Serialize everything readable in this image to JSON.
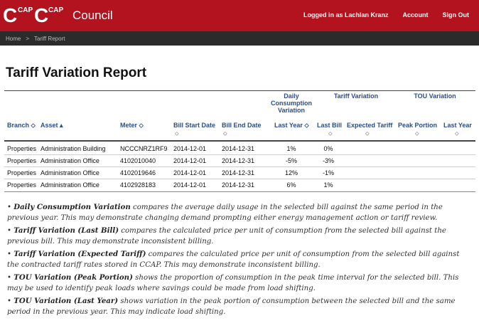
{
  "header": {
    "logo_letter_1": "C",
    "logo_sup_1": "CAP",
    "logo_letter_2": "C",
    "logo_sup_2": "CAP",
    "app_title": "Council",
    "logged_in": "Logged in as Lachlan Kranz",
    "account": "Account",
    "sign_out": "Sign Out"
  },
  "breadcrumb": {
    "home": "Home",
    "separator": ">",
    "current": "Tariff Report"
  },
  "page_title": "Tariff Variation Report",
  "table": {
    "groups": {
      "daily": "Daily Consumption Variation",
      "tariff": "Tariff Variation",
      "tou": "TOU Variation"
    },
    "columns": {
      "branch": "Branch",
      "asset": "Asset",
      "meter": "Meter",
      "bill_start": "Bill Start Date",
      "bill_end": "Bill End Date",
      "last_year": "Last Year",
      "last_bill": "Last Bill",
      "expected_tariff": "Expected Tariff",
      "peak_portion": "Peak Portion",
      "tou_last_year": "Last Year"
    },
    "sort_icons": {
      "both": "⬦",
      "up": "▴"
    },
    "rows": [
      {
        "branch": "Properties",
        "asset": "Administration Building",
        "meter": "NCCCNRZ1RF9",
        "start": "2014-12-01",
        "end": "2014-12-31",
        "last_year": "1%",
        "last_bill": "0%"
      },
      {
        "branch": "Properties",
        "asset": "Administration Office",
        "meter": "4102010040",
        "start": "2014-12-01",
        "end": "2014-12-31",
        "last_year": "-5%",
        "last_bill": "-3%"
      },
      {
        "branch": "Properties",
        "asset": "Administration Office",
        "meter": "4102019646",
        "start": "2014-12-01",
        "end": "2014-12-31",
        "last_year": "12%",
        "last_bill": "-1%"
      },
      {
        "branch": "Properties",
        "asset": "Administration Office",
        "meter": "4102928183",
        "start": "2014-12-01",
        "end": "2014-12-31",
        "last_year": "6%",
        "last_bill": "1%"
      }
    ]
  },
  "notes": [
    {
      "term": "Daily Consumption Variation",
      "text": " compares the average daily usage in the selected bill against the same period in the previous year. This may demonstrate changing demand prompting either energy management action or tariff review."
    },
    {
      "term": "Tariff Variation (Last Bill)",
      "text": " compares the calculated price per unit of consumption from the selected bill against the previous bill. This may demonstrate inconsistent billing."
    },
    {
      "term": "Tariff Variation (Expected Tariff)",
      "text": " compares the calculated price per unit of consumption from the selected bill against the contracted tariff rates stored in CCAP. This may demonstrate inconsistent billing."
    },
    {
      "term": "TOU Variation (Peak Portion)",
      "text": " shows the proportion of consumption in the peak time interval for the selected bill. This may be used to identify peak loads where savings could be made from load shifting."
    },
    {
      "term": "TOU Variation (Last Year)",
      "text": " shows variation in the peak portion of consumption between the selected bill and the same period in the previous year. This may indicate load shifting."
    }
  ],
  "colors": {
    "header_red": "#b3121f",
    "breadcrumb_bg": "#2b2b2b",
    "link_blue": "#2b4d8c"
  }
}
